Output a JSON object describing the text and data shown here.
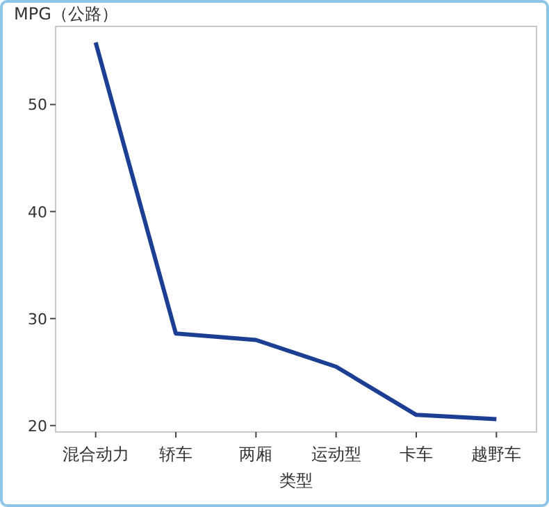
{
  "chart_data": {
    "type": "line",
    "ylabel": "MPG（公路）",
    "xlabel": "类型",
    "categories": [
      "混合动力",
      "轿车",
      "两厢",
      "运动型",
      "卡车",
      "越野车"
    ],
    "series": [
      {
        "color": "#1c3f94",
        "values": [
          55.8,
          28.6,
          28.0,
          25.5,
          21.0,
          20.6
        ]
      }
    ],
    "ylim": [
      19.4,
      57.3
    ],
    "yticks": [
      20,
      30,
      40,
      50
    ],
    "grid": false,
    "marker": "none",
    "line_style": "solid"
  }
}
